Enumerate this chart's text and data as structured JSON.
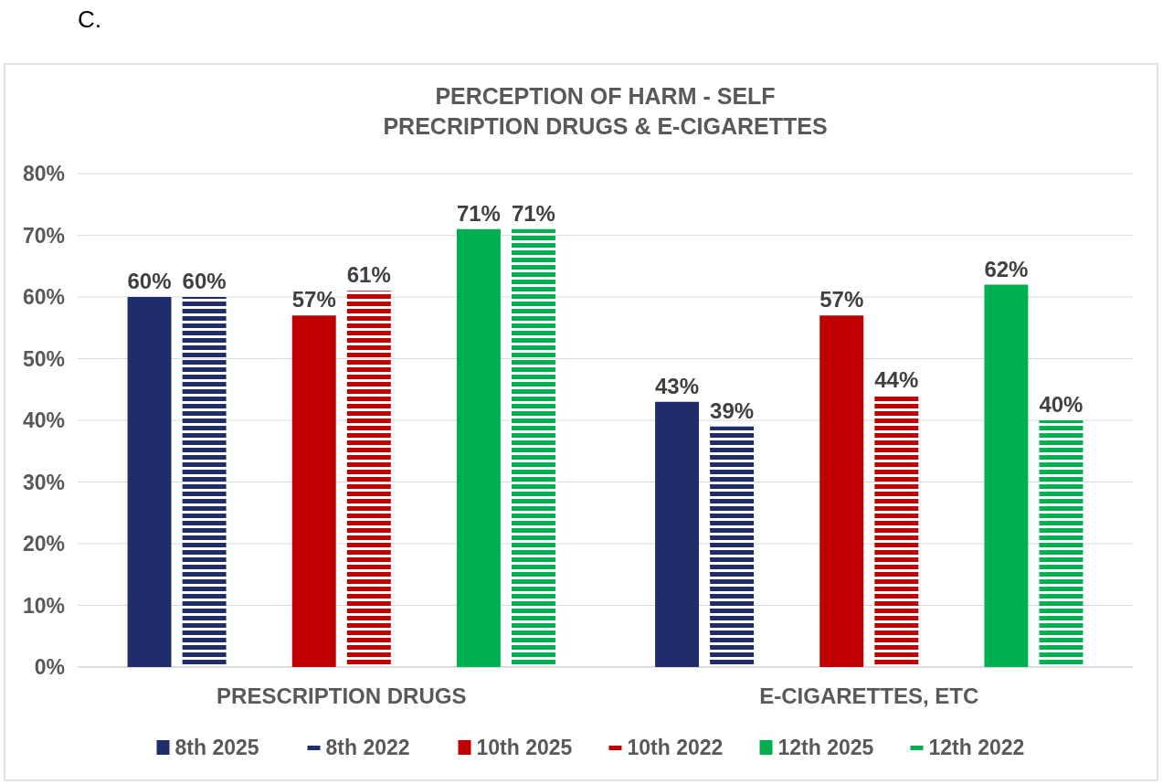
{
  "chart_data": {
    "type": "bar",
    "title": "PERCEPTION OF HARM - SELF\nPRECRIPTION DRUGS & E-CIGARETTES",
    "annotations": [
      "C."
    ],
    "categories": [
      "PRESCRIPTION DRUGS",
      "E-CIGARETTES, ETC"
    ],
    "series": [
      {
        "name": "8th 2025",
        "color": "#1f2d6b",
        "values": [
          60,
          43
        ],
        "value_labels": [
          "60%",
          "43%"
        ]
      },
      {
        "name": "8th 2022",
        "color": "#1f2d6b",
        "values": [
          60,
          39
        ],
        "value_labels": [
          "60%",
          "39%"
        ]
      },
      {
        "name": "10th 2025",
        "color": "#c00000",
        "values": [
          57,
          57
        ],
        "value_labels": [
          "57%",
          "57%"
        ]
      },
      {
        "name": "10th 2022",
        "color": "#c00000",
        "values": [
          61,
          44
        ],
        "value_labels": [
          "61%",
          "44%"
        ]
      },
      {
        "name": "12th 2025",
        "color": "#00b050",
        "values": [
          71,
          62
        ],
        "value_labels": [
          "71%",
          "62%"
        ]
      },
      {
        "name": "12th 2022",
        "color": "#00b050",
        "values": [
          71,
          40
        ],
        "value_labels": [
          "71%",
          "40%"
        ]
      }
    ],
    "ylim": [
      0,
      80
    ],
    "yticks": [
      {
        "value": 0,
        "label": "0%"
      },
      {
        "value": 10,
        "label": "10%"
      },
      {
        "value": 20,
        "label": "20%"
      },
      {
        "value": 30,
        "label": "30%"
      },
      {
        "value": 40,
        "label": "40%"
      },
      {
        "value": 50,
        "label": "50%"
      },
      {
        "value": 60,
        "label": "60%"
      },
      {
        "value": 70,
        "label": "70%"
      },
      {
        "value": 80,
        "label": "80%"
      }
    ],
    "grid": "y",
    "legend": "bottom"
  }
}
